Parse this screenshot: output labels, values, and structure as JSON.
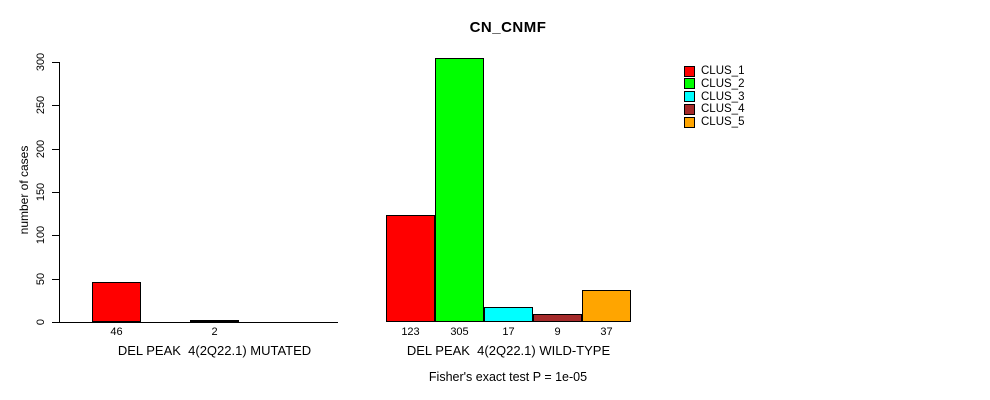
{
  "chart_data": {
    "type": "bar",
    "title": "CN_CNMF",
    "ylabel": "number of cases",
    "ylim": [
      0,
      300
    ],
    "yticks": [
      0,
      50,
      100,
      150,
      200,
      250,
      300
    ],
    "grid": false,
    "legend_position": "top-right",
    "value_labels": "shown under each non-zero bar",
    "categories": [
      "DEL PEAK  4(2Q22.1) MUTATED",
      "DEL PEAK  4(2Q22.1) WILD-TYPE"
    ],
    "series": [
      {
        "name": "CLUS_1",
        "color": "#ff0000",
        "values": [
          46,
          123
        ]
      },
      {
        "name": "CLUS_2",
        "color": "#00ff00",
        "values": [
          0,
          305
        ]
      },
      {
        "name": "CLUS_3",
        "color": "#00ffff",
        "values": [
          2,
          17
        ]
      },
      {
        "name": "CLUS_4",
        "color": "#a52a2a",
        "values": [
          0,
          9
        ]
      },
      {
        "name": "CLUS_5",
        "color": "#ffa500",
        "values": [
          0,
          37
        ]
      }
    ],
    "footnote": "Fisher's exact test P = 1e-05"
  }
}
